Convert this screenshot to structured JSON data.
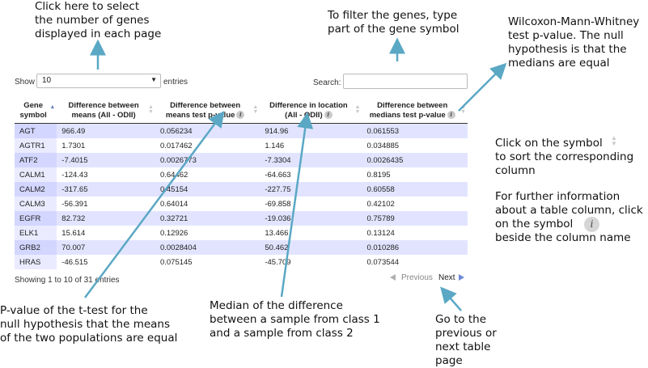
{
  "annotations": {
    "select_genes": "Click here to select\nthe number of genes\ndisplayed in each page",
    "filter": "To filter the genes, type\npart of the gene symbol",
    "wmw": "Wilcoxon-Mann-Whitney\ntest p-value. The null\nhypothesis is that the\nmedians are equal",
    "sort_symbol": "Click on the symbol\nto sort the corresponding\ncolumn",
    "info_symbol": "For further information\nabout a table column, click\non the symbol\nbeside the column name",
    "ttest": "P-value of the t-test for the\nnull hypothesis that the means\nof the two populations are equal",
    "median_diff": "Median of the difference\nbetween a sample from class 1\nand a sample from class 2",
    "pager": "Go to the\nprevious or\nnext table\npage"
  },
  "controls": {
    "show_label": "Show",
    "page_size_value": "10",
    "entries_label": "entries",
    "search_label": "Search:",
    "search_value": "",
    "info_text": "Showing 1 to 10 of 31 entries",
    "previous_label": "Previous",
    "next_label": "Next",
    "info_icon_glyph": "i"
  },
  "table": {
    "columns": [
      {
        "label": "Gene symbol",
        "info": false,
        "sorted": true
      },
      {
        "label": "Difference between means (All - ODII)",
        "info": false,
        "sorted": false
      },
      {
        "label": "Difference between means test p-value",
        "info": true,
        "sorted": false
      },
      {
        "label": "Difference in location (All - ODII)",
        "info": true,
        "sorted": false
      },
      {
        "label": "Difference between medians test p-value",
        "info": true,
        "sorted": false
      }
    ],
    "rows": [
      [
        "AGT",
        "966.49",
        "0.056234",
        "914.96",
        "0.061553"
      ],
      [
        "AGTR1",
        "1.7301",
        "0.017462",
        "1.146",
        "0.034885"
      ],
      [
        "ATF2",
        "-7.4015",
        "0.0026773",
        "-7.3304",
        "0.0026435"
      ],
      [
        "CALM1",
        "-124.43",
        "0.64462",
        "-64.663",
        "0.8195"
      ],
      [
        "CALM2",
        "-317.65",
        "0.45154",
        "-227.75",
        "0.60558"
      ],
      [
        "CALM3",
        "-56.391",
        "0.64014",
        "-69.858",
        "0.42102"
      ],
      [
        "EGFR",
        "82.732",
        "0.32721",
        "-19.036",
        "0.75789"
      ],
      [
        "ELK1",
        "15.614",
        "0.12926",
        "13.466",
        "0.13124"
      ],
      [
        "GRB2",
        "70.007",
        "0.0028404",
        "50.462",
        "0.010286"
      ],
      [
        "HRAS",
        "-46.515",
        "0.075145",
        "-45.709",
        "0.073544"
      ]
    ]
  },
  "colors": {
    "arrow": "#5aa8c4",
    "row_odd": "#e2e4ff",
    "pager_active": "#6f88d8"
  }
}
